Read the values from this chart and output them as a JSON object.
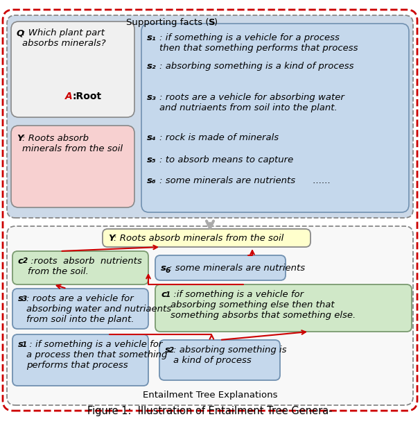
{
  "fig_width": 6.06,
  "fig_height": 6.14,
  "dpi": 100,
  "caption": "Figure 1:  Illustration of Entailment Tree Genera-",
  "outer_border_color": "#cc0000",
  "bg_color": "#ffffff",
  "top_bg": "#ccd9e8",
  "top_label": "Supporting facts (",
  "top_label_S": "S",
  "top_label_end": ")",
  "q_bg": "#f0f0f0",
  "q_text1": "Q",
  "q_text2": ": Which plant part\nabsorbs minerals?",
  "a_text": "A",
  "a_text2": ":Root",
  "a_color": "#cc0000",
  "y_top_bg": "#f7d0d0",
  "y_top_text1": "Y",
  "y_top_text2": ": Roots absorb\nminerals from the soil",
  "facts_bg": "#c5d8ec",
  "facts": [
    {
      "id": "s",
      "sub": "1",
      "colon": ": ",
      "text": "if something is a vehicle for a process\nthen that something performs that process"
    },
    {
      "id": "s",
      "sub": "2",
      "colon": ": ",
      "text": "absorbing something is a kind of process"
    },
    {
      "id": "s",
      "sub": "3",
      "colon": ": ",
      "text": "roots are a vehicle for absorbing water\nand nutriaents from soil into the plant."
    },
    {
      "id": "s",
      "sub": "4",
      "colon": ": ",
      "text": "rock is made of minerals"
    },
    {
      "id": "s",
      "sub": "5",
      "colon": ": ",
      "text": "to absorb means to capture"
    },
    {
      "id": "s",
      "sub": "6",
      "colon": ": ",
      "text": "some minerals are nutrients      ......"
    }
  ],
  "arrow_down_color": "#999999",
  "bot_bg": "#f5f5f5",
  "bot_label": "Entailment Tree Explanations",
  "y_bot_bg": "#ffffcc",
  "y_bot_border": "#888888",
  "y_bot_text1": "Y",
  "y_bot_text2": ": Roots absorb minerals from the soil",
  "c2_bg": "#d0e8c8",
  "c2_border": "#7a9a70",
  "c2_text1": "c",
  "c2_sub": "2",
  "c2_text2": " :roots  absorb  nutrients\nfrom the soil.",
  "s6b_bg": "#c5d8ec",
  "s6b_border": "#7090b0",
  "s6b_text1": "s",
  "s6b_sub": "6",
  "s6b_text2": ": some minerals are nutrients",
  "s3b_bg": "#c5d8ec",
  "s3b_border": "#7090b0",
  "s3b_text1": "s",
  "s3b_sub": "3",
  "s3b_text2": ": roots are a vehicle for\nabsorbing water and nutriaents\nfrom soil into the plant.",
  "c1_bg": "#d0e8c8",
  "c1_border": "#7a9a70",
  "c1_text1": "c",
  "c1_sub": "1",
  "c1_text2": " :if something is a vehicle for\nabsorbing something else then that\nsomething absorbs that something else.",
  "s1b_bg": "#c5d8ec",
  "s1b_border": "#7090b0",
  "s1b_text1": "s",
  "s1b_sub": "1",
  "s1b_text2": " : if something is a vehicle for\na process then that something\nperforms that process",
  "s2b_bg": "#c5d8ec",
  "s2b_border": "#7090b0",
  "s2b_text1": "s",
  "s2b_sub": "2",
  "s2b_text2": ": absorbing something is\na kind of process",
  "red": "#cc0000"
}
